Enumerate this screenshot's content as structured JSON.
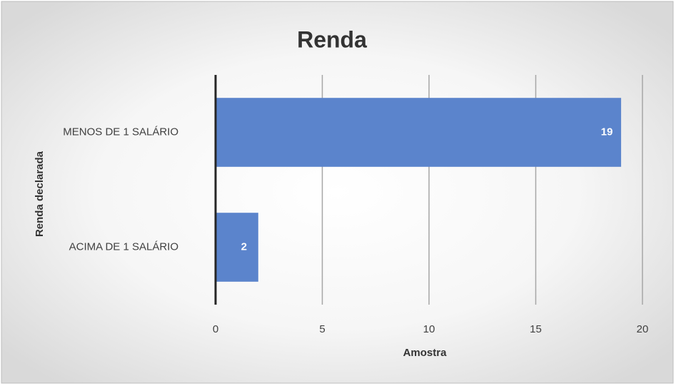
{
  "chart_data": {
    "type": "bar",
    "orientation": "horizontal",
    "title": "Renda",
    "x_label": "Amostra",
    "y_label": "Renda declarada",
    "categories": [
      "MENOS DE 1 SALÁRIO",
      "ACIMA DE 1 SALÁRIO"
    ],
    "values": [
      19,
      2
    ],
    "color": "#5b84cc",
    "xlim": [
      0,
      20
    ],
    "xticks": [
      0,
      5,
      10,
      15,
      20
    ],
    "grid": true,
    "data_labels": true
  }
}
